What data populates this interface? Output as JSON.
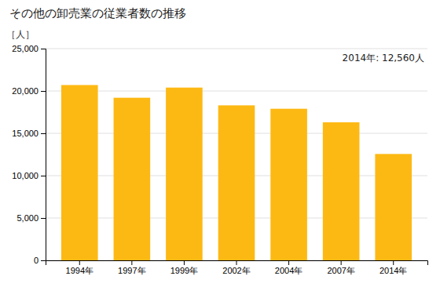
{
  "chart_data": {
    "type": "bar",
    "title": "その他の卸売業の従業者数の推移",
    "y_label": "［人］",
    "annotation": "2014年: 12,560人",
    "categories": [
      "1994年",
      "1997年",
      "1999年",
      "2002年",
      "2004年",
      "2007年",
      "2014年"
    ],
    "values": [
      20700,
      19200,
      20400,
      18300,
      17900,
      16300,
      12560
    ],
    "color": "#FDB913",
    "ylim": [
      0,
      25000
    ],
    "yticks": [
      0,
      {
        "value": 5000,
        "label": "5,000"
      },
      {
        "value": 10000,
        "label": "10,000"
      },
      {
        "value": 15000,
        "label": "15,000"
      },
      {
        "value": 20000,
        "label": "20,000"
      },
      {
        "value": 25000,
        "label": "25,000"
      }
    ],
    "grid": true
  }
}
